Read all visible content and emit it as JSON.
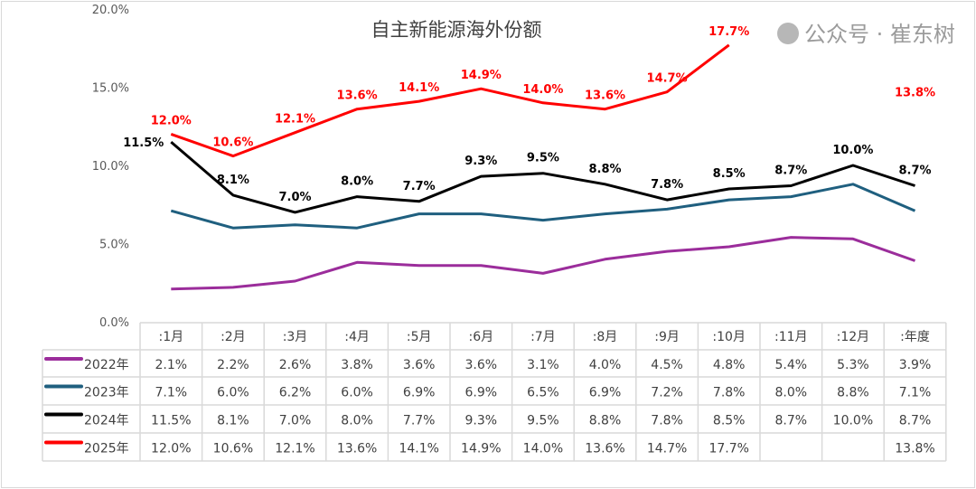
{
  "chart_data": {
    "type": "line",
    "title": "自主新能源海外份额",
    "categories": [
      ":1月",
      ":2月",
      ":3月",
      ":4月",
      ":5月",
      ":6月",
      ":7月",
      ":8月",
      ":9月",
      ":10月",
      ":11月",
      ":12月",
      ":年度"
    ],
    "ylim": [
      0,
      20
    ],
    "yticks": [
      "0.0%",
      "5.0%",
      "10.0%",
      "15.0%",
      "20.0%"
    ],
    "grid": false,
    "legend": "data table, left",
    "series": [
      {
        "name": "2022年",
        "color": "#9B2D9B",
        "values": [
          2.1,
          2.2,
          2.6,
          3.8,
          3.6,
          3.6,
          3.1,
          4.0,
          4.5,
          4.8,
          5.4,
          5.3,
          3.9
        ],
        "table": [
          "2.1%",
          "2.2%",
          "2.6%",
          "3.8%",
          "3.6%",
          "3.6%",
          "3.1%",
          "4.0%",
          "4.5%",
          "4.8%",
          "5.4%",
          "5.3%",
          "3.9%"
        ],
        "labels": false
      },
      {
        "name": "2023年",
        "color": "#1F5F7F",
        "values": [
          7.1,
          6.0,
          6.2,
          6.0,
          6.9,
          6.9,
          6.5,
          6.9,
          7.2,
          7.8,
          8.0,
          8.8,
          7.1
        ],
        "table": [
          "7.1%",
          "6.0%",
          "6.2%",
          "6.0%",
          "6.9%",
          "6.9%",
          "6.5%",
          "6.9%",
          "7.2%",
          "7.8%",
          "8.0%",
          "8.8%",
          "7.1%"
        ],
        "labels": false
      },
      {
        "name": "2024年",
        "color": "#000000",
        "values": [
          11.5,
          8.1,
          7.0,
          8.0,
          7.7,
          9.3,
          9.5,
          8.8,
          7.8,
          8.5,
          8.7,
          10.0,
          8.7
        ],
        "table": [
          "11.5%",
          "8.1%",
          "7.0%",
          "8.0%",
          "7.7%",
          "9.3%",
          "9.5%",
          "8.8%",
          "7.8%",
          "8.5%",
          "8.7%",
          "10.0%",
          "8.7%"
        ],
        "labels": true
      },
      {
        "name": "2025年",
        "color": "#FF0000",
        "values": [
          12.0,
          10.6,
          12.1,
          13.6,
          14.1,
          14.9,
          14.0,
          13.6,
          14.7,
          17.7,
          null,
          null,
          13.8
        ],
        "table": [
          "12.0%",
          "10.6%",
          "12.1%",
          "13.6%",
          "14.1%",
          "14.9%",
          "14.0%",
          "13.6%",
          "14.7%",
          "17.7%",
          "",
          "",
          "13.8%"
        ],
        "labels": true,
        "line_excludes_last": true
      }
    ]
  },
  "watermark": "公众号 · 崔东树"
}
